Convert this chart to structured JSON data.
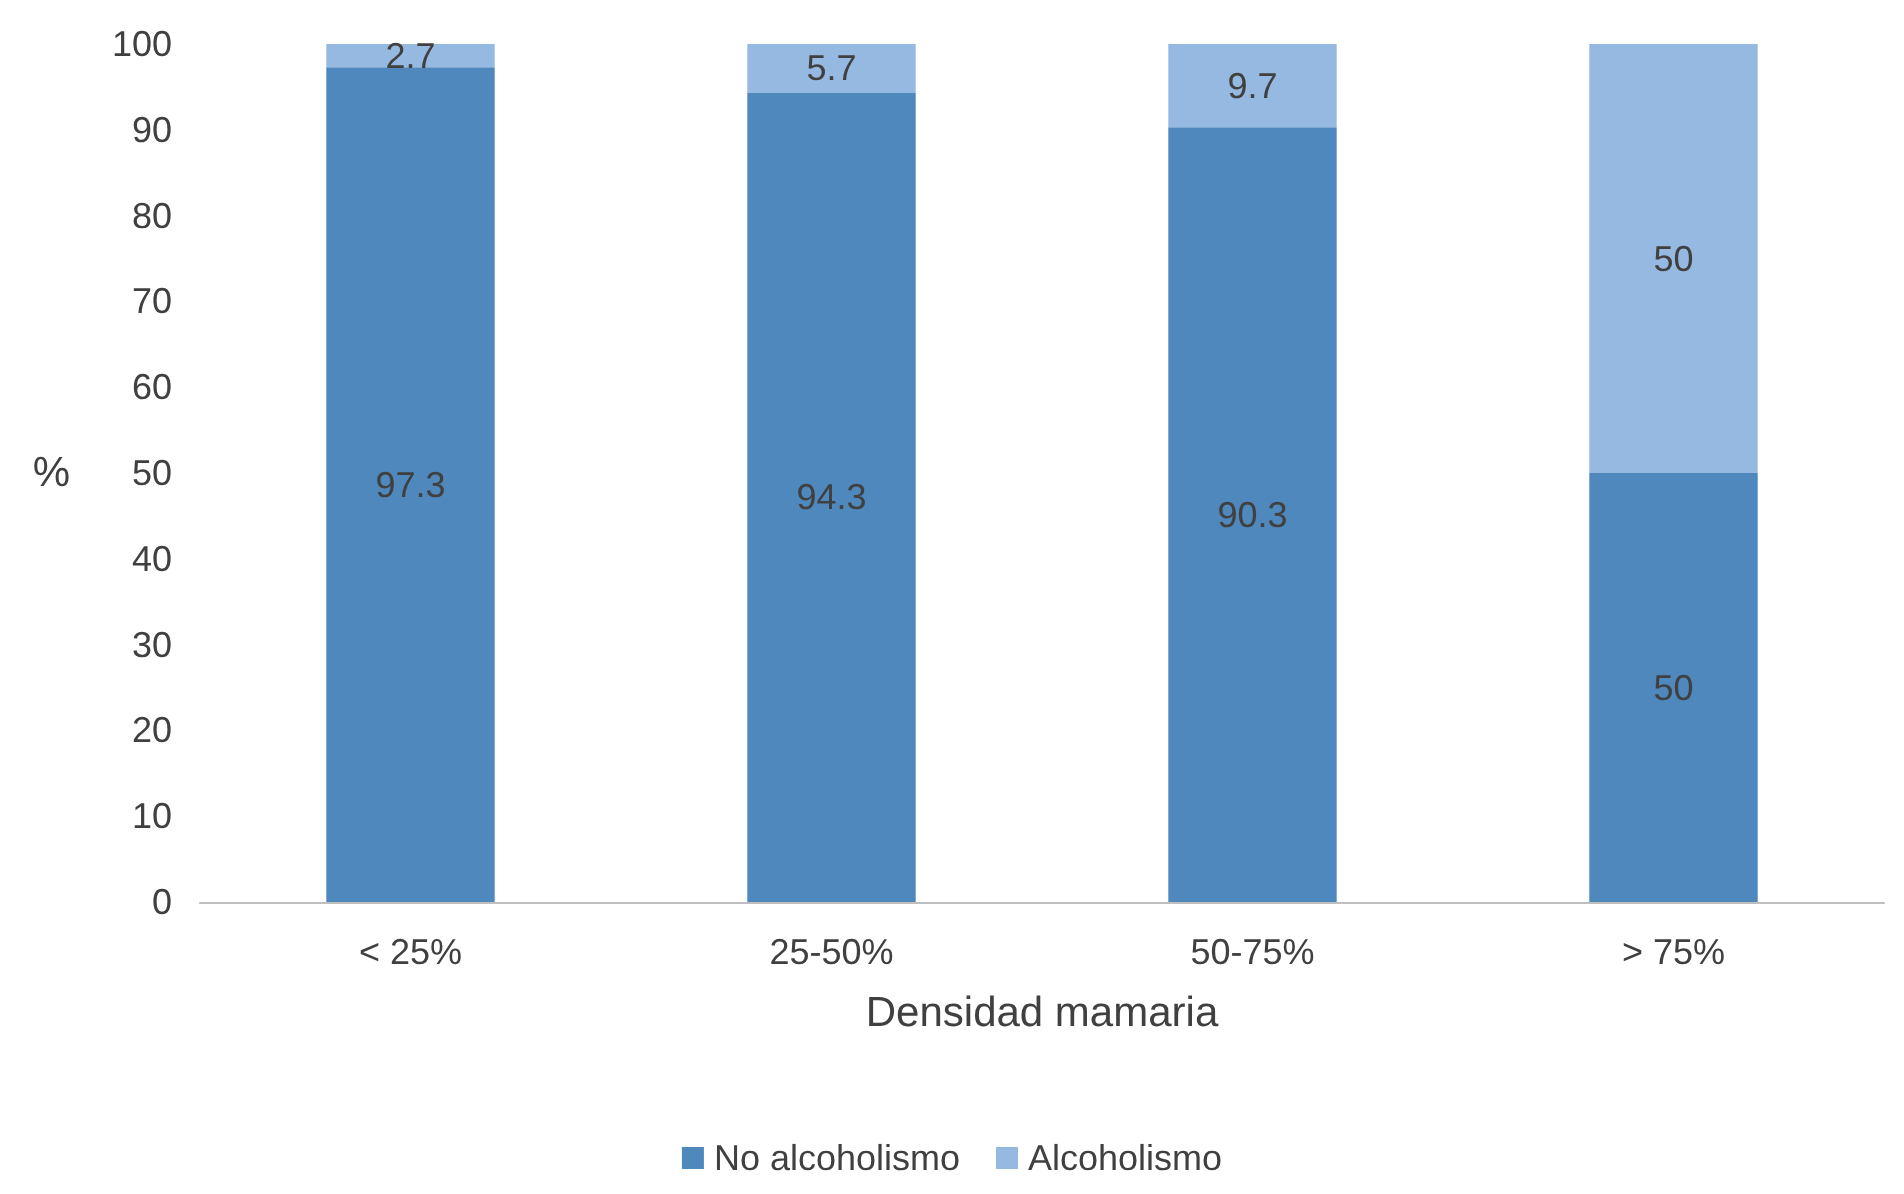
{
  "chart_data": {
    "type": "bar",
    "stacked": true,
    "xlabel": "Densidad mamaria",
    "ylabel": "%",
    "categories": [
      "< 25%",
      "25-50%",
      "50-75%",
      "> 75%"
    ],
    "series": [
      {
        "name": "No alcoholismo",
        "color": "#4f88bd",
        "values": [
          97.3,
          94.3,
          90.3,
          50
        ]
      },
      {
        "name": "Alcoholismo",
        "color": "#95b9e0",
        "values": [
          2.7,
          5.7,
          9.7,
          50
        ]
      }
    ],
    "ylim": [
      0,
      100
    ],
    "yticks": [
      0,
      10,
      20,
      30,
      40,
      50,
      60,
      70,
      80,
      90,
      100
    ],
    "data_labels": true,
    "legend": "bottom",
    "grid": false
  }
}
